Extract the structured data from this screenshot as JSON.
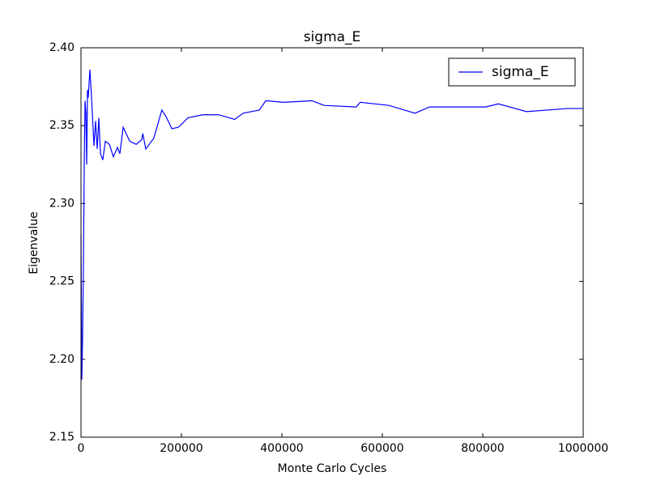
{
  "chart_data": {
    "type": "line",
    "title": "sigma_E",
    "xlabel": "Monte Carlo Cycles",
    "ylabel": "Eigenvalue",
    "x": [
      0,
      1600,
      3200,
      4800,
      6500,
      8100,
      9700,
      11300,
      12900,
      14500,
      17700,
      21000,
      25800,
      29000,
      32300,
      35500,
      38700,
      43500,
      48400,
      56500,
      64500,
      72600,
      77400,
      84000,
      97000,
      110000,
      121000,
      123000,
      129000,
      145000,
      161000,
      169000,
      181000,
      194000,
      213000,
      242000,
      274000,
      306000,
      323000,
      355000,
      368000,
      403000,
      460000,
      484000,
      548000,
      556000,
      613000,
      665000,
      694000,
      806000,
      831000,
      887000,
      968000,
      1000000
    ],
    "series": [
      {
        "name": "sigma_E",
        "color": "#0000ff",
        "values": [
          2.28,
          2.187,
          2.215,
          2.259,
          2.327,
          2.366,
          2.358,
          2.325,
          2.373,
          2.368,
          2.386,
          2.368,
          2.337,
          2.353,
          2.335,
          2.355,
          2.332,
          2.328,
          2.34,
          2.338,
          2.33,
          2.336,
          2.332,
          2.349,
          2.34,
          2.338,
          2.341,
          2.345,
          2.335,
          2.342,
          2.36,
          2.356,
          2.348,
          2.349,
          2.355,
          2.357,
          2.357,
          2.354,
          2.358,
          2.36,
          2.366,
          2.365,
          2.366,
          2.363,
          2.362,
          2.365,
          2.363,
          2.358,
          2.362,
          2.362,
          2.364,
          2.359,
          2.361,
          2.361
        ]
      }
    ],
    "xlim": [
      0,
      1000000
    ],
    "xticks": [
      0,
      200000,
      400000,
      600000,
      800000,
      1000000
    ],
    "ylim": [
      2.15,
      2.4
    ],
    "yticks": [
      2.15,
      {
        "value": 2.2,
        "label": "2.20"
      },
      2.25,
      {
        "value": 2.3,
        "label": "2.30"
      },
      2.35,
      {
        "value": 2.4,
        "label": "2.40"
      }
    ],
    "grid": false,
    "legend": "upper right"
  }
}
